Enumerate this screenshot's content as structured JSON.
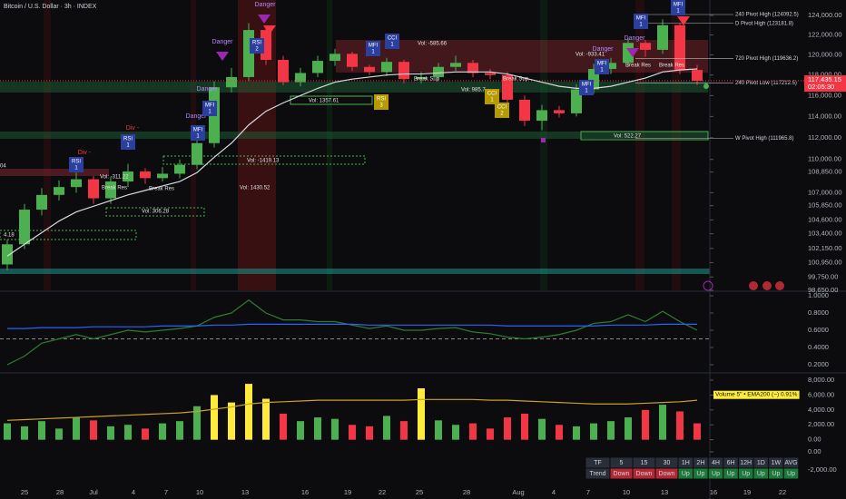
{
  "header": {
    "title": "Bitcoin / U.S. Dollar · 3h · INDEX"
  },
  "chart_data": [
    {
      "type": "candlestick",
      "log_scale": true,
      "grid": false,
      "ylim": [
        98650,
        125600
      ],
      "yticks": [
        {
          "value": 124000,
          "label": "124,000.00"
        },
        {
          "value": 122000,
          "label": "122,000.00"
        },
        {
          "value": 120000,
          "label": "120,000.00"
        },
        {
          "value": 118000,
          "label": "118,000.00"
        },
        {
          "value": 116000,
          "label": "116,000.00"
        },
        {
          "value": 114000,
          "label": "114,000.00"
        },
        {
          "value": 112000,
          "label": "112,000.00"
        },
        {
          "value": 110000,
          "label": "110,000.00"
        },
        {
          "value": 108850,
          "label": "108,850.00"
        },
        {
          "value": 107000,
          "label": "107,000.00"
        },
        {
          "value": 105850,
          "label": "105,850.00"
        },
        {
          "value": 104600,
          "label": "104,600.00"
        },
        {
          "value": 103400,
          "label": "103,400.00"
        },
        {
          "value": 102150,
          "label": "102,150.00"
        },
        {
          "value": 100950,
          "label": "100,950.00"
        },
        {
          "value": 99750,
          "label": "99,750.00"
        },
        {
          "value": 98650,
          "label": "98,650.00"
        }
      ],
      "x_labels": [
        "25",
        "28",
        "Jul",
        "4",
        "7",
        "10",
        "13",
        "16",
        "19",
        "22",
        "25",
        "28",
        "Aug",
        "4",
        "7",
        "10",
        "13",
        "16",
        "19",
        "22"
      ],
      "up_color": "#4caf50",
      "down_color": "#f23645",
      "open": [
        100800,
        102500,
        105500,
        106800,
        107500,
        108200,
        106500,
        108000,
        108900,
        108300,
        108700,
        109500,
        111500,
        116800,
        117800,
        122500,
        119500,
        117300,
        118200,
        119400,
        120100,
        118800,
        118300,
        119300,
        117600,
        117800,
        118800,
        119200,
        118200,
        118000,
        115600,
        113600,
        114600,
        114300,
        116600,
        118600,
        119200,
        121200,
        120500,
        123000,
        118500
      ],
      "high": [
        102900,
        106000,
        107400,
        108100,
        108800,
        108500,
        108400,
        109600,
        109200,
        109300,
        110000,
        112200,
        117400,
        118700,
        123200,
        122900,
        119900,
        118700,
        119900,
        120600,
        120300,
        119000,
        119700,
        119500,
        118300,
        119200,
        119900,
        119500,
        118600,
        118300,
        116000,
        115100,
        115000,
        117100,
        119100,
        119700,
        121700,
        121500,
        123600,
        123200,
        119000
      ],
      "low": [
        100300,
        102100,
        105000,
        106300,
        107000,
        106000,
        106000,
        107500,
        107800,
        108000,
        108300,
        109100,
        111100,
        116300,
        117400,
        119000,
        117000,
        116900,
        117800,
        118900,
        118400,
        118000,
        117900,
        117200,
        117200,
        117500,
        118400,
        117800,
        117600,
        115100,
        113100,
        112700,
        113900,
        114000,
        116200,
        118100,
        118800,
        119800,
        120100,
        118100,
        117000
      ],
      "close": [
        102500,
        105500,
        106800,
        107500,
        108200,
        106500,
        108000,
        108900,
        108300,
        108700,
        109500,
        111500,
        116800,
        117800,
        122500,
        119500,
        117300,
        118200,
        119400,
        120100,
        118800,
        118300,
        119300,
        117600,
        117800,
        118800,
        119200,
        118200,
        118000,
        115600,
        113600,
        114600,
        114300,
        116600,
        118600,
        119200,
        121200,
        120500,
        123000,
        118500,
        117435
      ],
      "lines": [
        {
          "color": "#d8d8e0",
          "values": [
            101500,
            102500,
            103500,
            104500,
            105300,
            105800,
            106300,
            106800,
            107200,
            107600,
            108000,
            108800,
            110200,
            111500,
            113200,
            114500,
            115300,
            116000,
            116700,
            117300,
            117600,
            117800,
            118000,
            118100,
            118100,
            118200,
            118300,
            118300,
            118300,
            118100,
            117700,
            117300,
            116900,
            116700,
            116700,
            116900,
            117300,
            117700,
            118300,
            118500,
            118600
          ]
        }
      ],
      "levels": [
        {
          "label": "240 Pivot High (124092.5)",
          "value": 124092.5
        },
        {
          "label": "D Pivot High (123181.8)",
          "value": 123181.8
        },
        {
          "label": "720 Pivot High (119636.2)",
          "value": 119636.2
        },
        {
          "label": "240 Pivot Low (117212.5)",
          "value": 117212.5
        },
        {
          "label": "W Pivot High (111965.8)",
          "value": 111965.8
        }
      ],
      "last_price": {
        "value": 117435.15,
        "label": "117,435.15"
      },
      "countdown": "02:05:30"
    },
    {
      "type": "line",
      "grid": false,
      "ylim": [
        0.116,
        1.042
      ],
      "yticks": [
        {
          "value": 1,
          "label": "1.0000"
        },
        {
          "value": 0.8,
          "label": "0.8000"
        },
        {
          "value": 0.6,
          "label": "0.6000"
        },
        {
          "value": 0.4,
          "label": "0.4000"
        },
        {
          "value": 0.2,
          "label": "0.2000"
        }
      ],
      "hline": 0.5,
      "series": [
        {
          "color": "#2e7d32",
          "values": [
            0.2,
            0.3,
            0.45,
            0.5,
            0.55,
            0.5,
            0.55,
            0.6,
            0.58,
            0.6,
            0.62,
            0.65,
            0.75,
            0.8,
            0.95,
            0.8,
            0.72,
            0.72,
            0.7,
            0.7,
            0.66,
            0.62,
            0.65,
            0.6,
            0.6,
            0.62,
            0.63,
            0.58,
            0.56,
            0.52,
            0.5,
            0.52,
            0.55,
            0.6,
            0.68,
            0.7,
            0.78,
            0.7,
            0.82,
            0.7,
            0.6
          ]
        },
        {
          "color": "#2962ff",
          "values": [
            0.62,
            0.62,
            0.63,
            0.63,
            0.63,
            0.64,
            0.64,
            0.64,
            0.64,
            0.65,
            0.65,
            0.65,
            0.66,
            0.66,
            0.67,
            0.67,
            0.67,
            0.67,
            0.67,
            0.67,
            0.67,
            0.66,
            0.66,
            0.66,
            0.66,
            0.66,
            0.66,
            0.66,
            0.66,
            0.65,
            0.65,
            0.65,
            0.65,
            0.65,
            0.65,
            0.66,
            0.66,
            0.66,
            0.67,
            0.67,
            0.67
          ]
        }
      ]
    },
    {
      "type": "bar",
      "grid": false,
      "ylim": [
        -1500,
        8850
      ],
      "yticks": [
        {
          "value": 8000,
          "label": "8,000.00"
        },
        {
          "value": 6000,
          "label": "6,000.00"
        },
        {
          "value": 4000,
          "label": "4,000.00"
        },
        {
          "value": 2000,
          "label": "2,000.00"
        },
        {
          "value": 0,
          "label": "0.00"
        }
      ],
      "values": [
        2200,
        1800,
        2500,
        1500,
        3000,
        2600,
        1800,
        2000,
        1500,
        2200,
        2500,
        4500,
        6000,
        5000,
        7500,
        5500,
        3500,
        2500,
        3000,
        2800,
        2000,
        1800,
        3200,
        2500,
        6900,
        2600,
        2000,
        2200,
        1500,
        3000,
        3500,
        2800,
        2000,
        1800,
        2200,
        2500,
        3000,
        4000,
        4700,
        3800,
        2200
      ],
      "colors": [
        "#4caf50",
        "#4caf50",
        "#4caf50",
        "#4caf50",
        "#4caf50",
        "#f23645",
        "#4caf50",
        "#4caf50",
        "#f23645",
        "#4caf50",
        "#4caf50",
        "#4caf50",
        "#ffeb3b",
        "#ffeb3b",
        "#ffeb3b",
        "#ffeb3b",
        "#f23645",
        "#4caf50",
        "#4caf50",
        "#4caf50",
        "#f23645",
        "#f23645",
        "#4caf50",
        "#f23645",
        "#ffeb3b",
        "#4caf50",
        "#4caf50",
        "#f23645",
        "#f23645",
        "#f23645",
        "#f23645",
        "#4caf50",
        "#f23645",
        "#4caf50",
        "#4caf50",
        "#4caf50",
        "#4caf50",
        "#f23645",
        "#4caf50",
        "#f23645",
        "#f23645"
      ],
      "lines": [
        {
          "color": "#c9a227",
          "values": [
            2600,
            2700,
            2800,
            2900,
            3000,
            3100,
            3200,
            3300,
            3400,
            3500,
            3600,
            3800,
            4100,
            4400,
            4800,
            5000,
            5100,
            5200,
            5300,
            5300,
            5300,
            5300,
            5300,
            5300,
            5400,
            5400,
            5400,
            5400,
            5300,
            5300,
            5200,
            5100,
            5000,
            4900,
            4800,
            4800,
            4800,
            4900,
            5000,
            5100,
            5300
          ]
        }
      ],
      "line_label": "Volume 5\" • EMA200 (~) 0.91%"
    },
    {
      "type": "line",
      "grid": false,
      "ylim": [
        -4700,
        600
      ],
      "yticks": [
        {
          "value": 0,
          "label": "0.00"
        },
        {
          "value": -2000,
          "label": "-2,000.00"
        }
      ],
      "series": []
    }
  ],
  "annotations": {
    "badges": [
      {
        "label": "RSI",
        "count": 1,
        "color": "#2a3f9e"
      },
      {
        "label": "RSI",
        "count": 1,
        "color": "#2a3f9e"
      },
      {
        "label": "MFI",
        "count": 1,
        "color": "#2a3f9e"
      },
      {
        "label": "MFI",
        "count": 1,
        "color": "#2a3f9e"
      },
      {
        "label": "RSI",
        "count": 2,
        "color": "#2a3f9e"
      },
      {
        "label": "MFI",
        "count": 1,
        "color": "#2a3f9e"
      },
      {
        "label": "CCI",
        "count": 1,
        "color": "#2a3f9e"
      },
      {
        "label": "RSI",
        "count": 3,
        "color": "#b59a00"
      },
      {
        "label": "CCI",
        "count": 1,
        "color": "#b59a00"
      },
      {
        "label": "CCI",
        "count": 2,
        "color": "#b59a00"
      },
      {
        "label": "MFI",
        "count": 1,
        "color": "#2a3f9e"
      },
      {
        "label": "MFI",
        "count": 1,
        "color": "#2a3f9e"
      },
      {
        "label": "MFI",
        "count": 1,
        "color": "#2a3f9e"
      },
      {
        "label": "MFI",
        "count": 1,
        "color": "#2a3f9e"
      }
    ],
    "labels": [
      "Danger",
      "Danger",
      "Danger",
      "Danger",
      "Danger",
      "Danger",
      "Div -",
      "Div -",
      "Break Res",
      "Break Res",
      "Break Res",
      "Break Res",
      "Break Sup",
      "Break Sup",
      "Vol: -585.66",
      "Vol: -933.41",
      "Vol: 1357.61",
      "Vol: 985.7",
      "Vol: -1419.13",
      "Vol: 1430.52",
      "Vol: 306.28",
      "Vol: 522.27",
      "Vol: -311.22",
      "4.18",
      "04"
    ]
  },
  "trend_table": {
    "header": [
      "TF",
      "5",
      "15",
      "30",
      "1H",
      "2H",
      "4H",
      "6H",
      "12H",
      "1D",
      "1W",
      "AVG"
    ],
    "row": [
      "Trend",
      "Down",
      "Down",
      "Down",
      "Up",
      "Up",
      "Up",
      "Up",
      "Up",
      "Up",
      "Up",
      "Up"
    ],
    "cell_colors": [
      "#2a2e39",
      "#b22833",
      "#b22833",
      "#b22833",
      "#1b7a3a",
      "#1b7a3a",
      "#1b7a3a",
      "#1b7a3a",
      "#1b7a3a",
      "#1b7a3a",
      "#1b7a3a",
      "#1b7a3a"
    ]
  }
}
